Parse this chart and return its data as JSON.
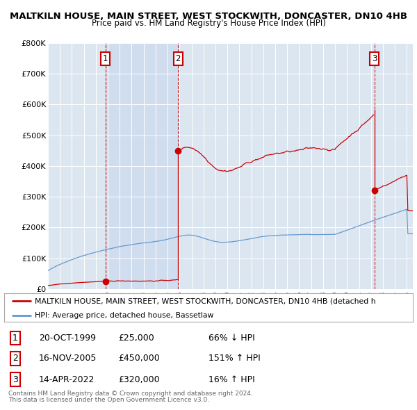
{
  "title1": "MALTKILN HOUSE, MAIN STREET, WEST STOCKWITH, DONCASTER, DN10 4HB",
  "title2": "Price paid vs. HM Land Registry's House Price Index (HPI)",
  "legend_line1": "MALTKILN HOUSE, MAIN STREET, WEST STOCKWITH, DONCASTER, DN10 4HB (detached h",
  "legend_line2": "HPI: Average price, detached house, Bassetlaw",
  "footer1": "Contains HM Land Registry data © Crown copyright and database right 2024.",
  "footer2": "This data is licensed under the Open Government Licence v3.0.",
  "sale_color": "#cc0000",
  "hpi_color": "#6699cc",
  "background_color": "#dce6f1",
  "shade_color": "#c8d8ec",
  "ylim": [
    0,
    800000
  ],
  "yticks": [
    0,
    100000,
    200000,
    300000,
    400000,
    500000,
    600000,
    700000,
    800000
  ],
  "ytick_labels": [
    "£0",
    "£100K",
    "£200K",
    "£300K",
    "£400K",
    "£500K",
    "£600K",
    "£700K",
    "£800K"
  ],
  "sale1_date": 1999.8,
  "sale1_price": 25000,
  "sale2_date": 2005.88,
  "sale2_price": 450000,
  "sale3_date": 2022.28,
  "sale3_price": 320000,
  "table_rows": [
    [
      "1",
      "20-OCT-1999",
      "£25,000",
      "66% ↓ HPI"
    ],
    [
      "2",
      "16-NOV-2005",
      "£450,000",
      "151% ↑ HPI"
    ],
    [
      "3",
      "14-APR-2022",
      "£320,000",
      "16% ↑ HPI"
    ]
  ]
}
